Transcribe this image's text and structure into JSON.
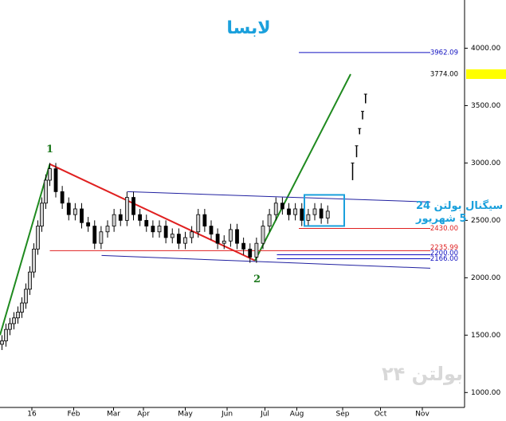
{
  "chart_data": {
    "type": "candlestick",
    "title": "لابسا",
    "xlim": [
      -8,
      225.2
    ],
    "ylim": [
      870,
      4420
    ],
    "xticks": [
      {
        "value": 8,
        "label": "16"
      },
      {
        "value": 29,
        "label": "Feb"
      },
      {
        "value": 49,
        "label": "Mar"
      },
      {
        "value": 64,
        "label": "Apr"
      },
      {
        "value": 85,
        "label": "May"
      },
      {
        "value": 106,
        "label": "Jun"
      },
      {
        "value": 125,
        "label": "Jul"
      },
      {
        "value": 141,
        "label": "Aug"
      },
      {
        "value": 164,
        "label": "Sep"
      },
      {
        "value": 183,
        "label": "Oct"
      },
      {
        "value": 204,
        "label": "Nov"
      }
    ],
    "yticks": [
      {
        "value": 1000,
        "label": "1000.00"
      },
      {
        "value": 1500,
        "label": "1500.00"
      },
      {
        "value": 2000,
        "label": "2000.00"
      },
      {
        "value": 2500,
        "label": "2500.00"
      },
      {
        "value": 3000,
        "label": "3000.00"
      },
      {
        "value": 3500,
        "label": "3500.00"
      },
      {
        "value": 4000,
        "label": "4000.00"
      }
    ],
    "up_color": "#d0d0d0",
    "down_color": "#000000",
    "series": [
      {
        "x": [
          -7,
          -5,
          -3,
          -1,
          1,
          3,
          5,
          7,
          9,
          11,
          13,
          15,
          17,
          20,
          23.25,
          26.5,
          29.75,
          33,
          36.25,
          39.5,
          42.75,
          46,
          49.25,
          52.5,
          55.75,
          59,
          62.25,
          65.5,
          68.75,
          72,
          75.25,
          78.5,
          81.75,
          85,
          88.25,
          91.5,
          94.75,
          98,
          101.25,
          104.5,
          107.75,
          111,
          114.25,
          117.5,
          120.75,
          124,
          127.25,
          130.5,
          133.75,
          137,
          140.25,
          143.5,
          146.75,
          150,
          153.25,
          156.5
        ],
        "open": [
          1420,
          1450,
          1550,
          1600,
          1650,
          1700,
          1780,
          1900,
          2050,
          2250,
          2450,
          2650,
          2850,
          2950,
          2750,
          2650,
          2550,
          2600,
          2480,
          2450,
          2300,
          2400,
          2450,
          2550,
          2500,
          2700,
          2550,
          2500,
          2450,
          2400,
          2450,
          2350,
          2380,
          2300,
          2350,
          2400,
          2550,
          2450,
          2380,
          2300,
          2320,
          2420,
          2300,
          2250,
          2180,
          2300,
          2450,
          2550,
          2650,
          2600,
          2550,
          2600,
          2500,
          2550,
          2600,
          2520
        ],
        "high": [
          1500,
          1600,
          1650,
          1700,
          1750,
          1830,
          1950,
          2100,
          2300,
          2500,
          2700,
          2900,
          3000,
          3000,
          2800,
          2700,
          2650,
          2650,
          2530,
          2500,
          2450,
          2500,
          2600,
          2600,
          2750,
          2750,
          2600,
          2550,
          2500,
          2500,
          2500,
          2430,
          2430,
          2400,
          2450,
          2600,
          2600,
          2500,
          2430,
          2370,
          2470,
          2470,
          2350,
          2300,
          2350,
          2500,
          2600,
          2700,
          2700,
          2650,
          2650,
          2650,
          2600,
          2650,
          2650,
          2630
        ],
        "low": [
          1370,
          1400,
          1500,
          1550,
          1600,
          1650,
          1730,
          1850,
          2000,
          2200,
          2400,
          2600,
          2800,
          2700,
          2600,
          2500,
          2500,
          2430,
          2400,
          2250,
          2250,
          2350,
          2400,
          2450,
          2450,
          2500,
          2450,
          2400,
          2350,
          2350,
          2300,
          2300,
          2250,
          2250,
          2300,
          2350,
          2400,
          2330,
          2250,
          2250,
          2270,
          2250,
          2200,
          2130,
          2130,
          2250,
          2400,
          2500,
          2550,
          2500,
          2500,
          2450,
          2450,
          2500,
          2470,
          2470
        ],
        "close": [
          1450,
          1550,
          1600,
          1650,
          1700,
          1780,
          1900,
          2050,
          2250,
          2450,
          2650,
          2850,
          2950,
          2750,
          2650,
          2550,
          2600,
          2480,
          2450,
          2300,
          2400,
          2450,
          2550,
          2500,
          2700,
          2550,
          2500,
          2450,
          2400,
          2450,
          2350,
          2380,
          2300,
          2350,
          2400,
          2550,
          2450,
          2380,
          2300,
          2320,
          2420,
          2300,
          2250,
          2180,
          2300,
          2450,
          2550,
          2650,
          2600,
          2550,
          2600,
          2500,
          2550,
          2600,
          2520,
          2580
        ]
      }
    ],
    "projection": {
      "x": [
        169,
        171,
        172.5,
        174,
        175.5
      ],
      "low": [
        2850,
        3050,
        3250,
        3380,
        3520
      ],
      "high": [
        3000,
        3150,
        3300,
        3450,
        3600
      ],
      "color": "#000000"
    },
    "trendlines": [
      {
        "color": "#1f8a1f",
        "x": [
          -8,
          17
        ],
        "y": [
          1500,
          2990
        ]
      },
      {
        "color": "#e02020",
        "x": [
          17,
          120
        ],
        "y": [
          2990,
          2150
        ]
      },
      {
        "color": "#1f8a1f",
        "x": [
          120,
          168
        ],
        "y": [
          2150,
          3774
        ]
      },
      {
        "color": "#2020a0",
        "x": [
          56,
          208
        ],
        "y": [
          2750,
          2660
        ]
      },
      {
        "color": "#2020a0",
        "x": [
          43,
          208
        ],
        "y": [
          2194,
          2083
        ]
      }
    ],
    "levels": {
      "values": [
        3962.09,
        3774,
        2430,
        2235.99,
        2200,
        2166
      ],
      "value_labels": [
        "3962.09",
        "3774.00",
        "2430.00",
        "2235.99",
        "2200.00",
        "2166.00"
      ],
      "start": [
        142,
        null,
        142,
        17,
        131,
        131
      ],
      "colors": [
        "#1010c0",
        "#000000",
        "#e02020",
        "#e02020",
        "#1010c0",
        "#1010c0"
      ],
      "label_backgrounds": [
        "#ffffff",
        "#ffff00",
        "#ffffff",
        "#ffffff",
        "#ffffff",
        "#ffffff"
      ]
    },
    "waves": [
      {
        "text": "1",
        "x": 17,
        "y": 3118
      },
      {
        "text": "2",
        "x": 121,
        "y": 1986
      }
    ],
    "signal": {
      "x": [
        144.8,
        164.8
      ],
      "y": [
        2451,
        2722
      ],
      "color": "#1aa0dc",
      "lines": [
        "سیگنال بولتن 24",
        "5 شهریور"
      ]
    },
    "watermark": "بولتن ۲۴"
  }
}
